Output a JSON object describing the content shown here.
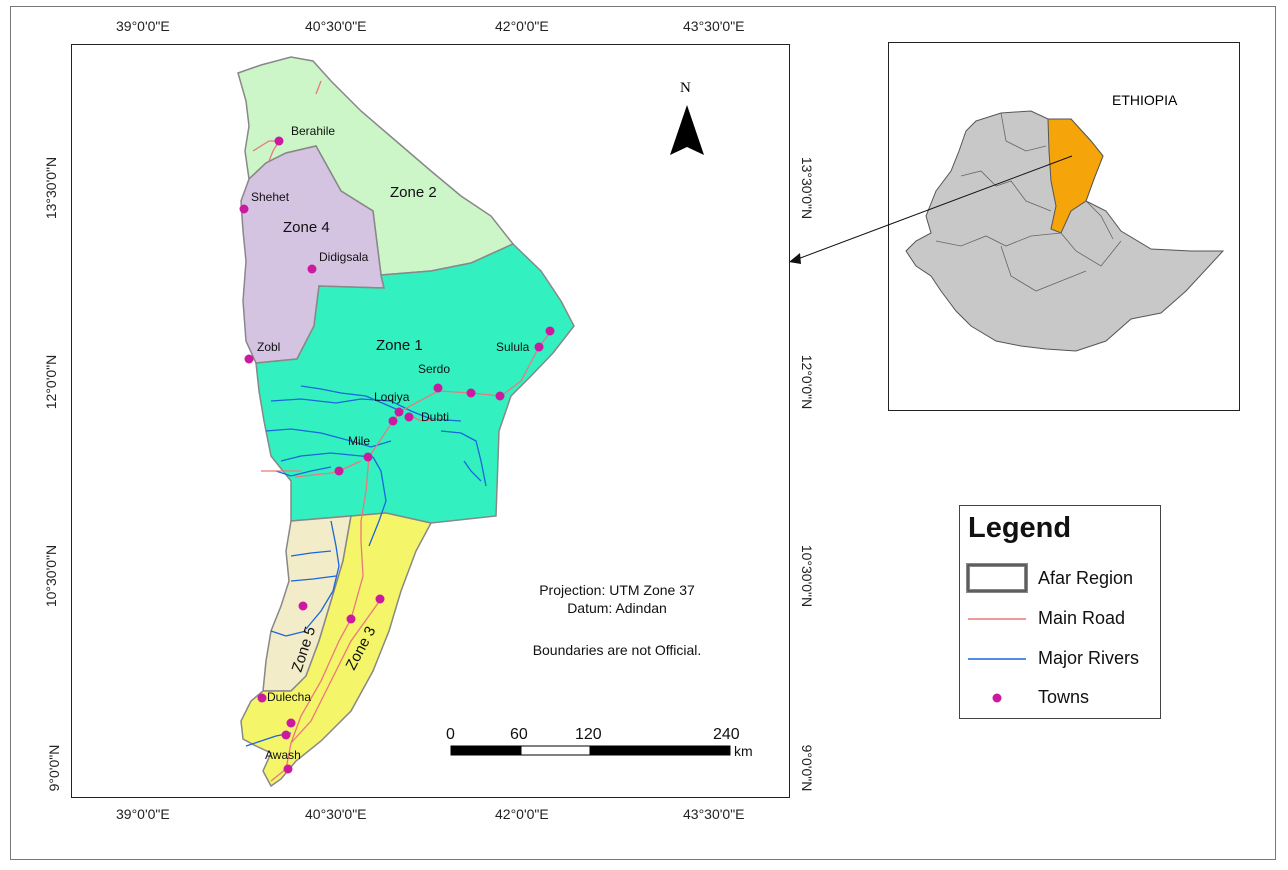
{
  "map": {
    "lon_labels": [
      "39°0'0\"E",
      "40°30'0\"E",
      "42°0'0\"E",
      "43°30'0\"E"
    ],
    "lat_labels": [
      "13°30'0\"N",
      "12°0'0\"N",
      "10°30'0\"N",
      "9°0'0\"N"
    ],
    "north_arrow": "N",
    "zones": [
      {
        "name": "Zone 1",
        "color": "#33f0c0"
      },
      {
        "name": "Zone 2",
        "color": "#ccf5c8"
      },
      {
        "name": "Zone 3",
        "color": "#f5f56a"
      },
      {
        "name": "Zone 4",
        "color": "#d5c3e2"
      },
      {
        "name": "Zone 5",
        "color": "#f3ecc8"
      }
    ],
    "towns": [
      "Berahile",
      "Shehet",
      "Didigsala",
      "Zobl",
      "Sulula",
      "Serdo",
      "Loqiya",
      "Dubti",
      "Mile",
      "Dulecha",
      "Awash"
    ],
    "notes": {
      "projection": "Projection: UTM Zone 37",
      "datum": "Datum: Adindan",
      "disclaimer": "Boundaries are not Official."
    },
    "scale_bar": {
      "ticks": [
        "0",
        "60",
        "120",
        "240"
      ],
      "unit": "km"
    },
    "colors": {
      "road": "#e8797c",
      "river": "#1a66dd",
      "town": "#cc1aa0",
      "boundary": "#888888"
    }
  },
  "inset": {
    "country_label": "ETHIOPIA",
    "country_color": "#c8c8c8",
    "region_color": "#f5a50a"
  },
  "legend": {
    "title": "Legend",
    "items": [
      {
        "label": "Afar Region",
        "symbol": "region-box-icon"
      },
      {
        "label": "Main Road",
        "symbol": "road-line-icon"
      },
      {
        "label": "Major Rivers",
        "symbol": "river-line-icon"
      },
      {
        "label": "Towns",
        "symbol": "town-dot-icon"
      }
    ]
  }
}
